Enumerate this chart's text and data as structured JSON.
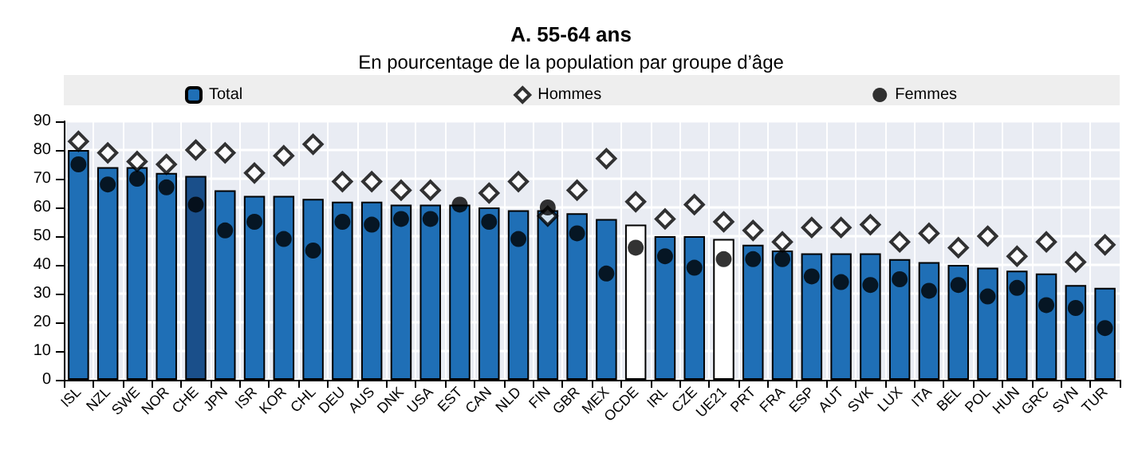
{
  "chart_data": {
    "type": "bar",
    "title": "A. 55-64 ans",
    "subtitle": "En pourcentage de la population par groupe d’âge",
    "categories": [
      "ISL",
      "NZL",
      "SWE",
      "NOR",
      "CHE",
      "JPN",
      "ISR",
      "KOR",
      "CHL",
      "DEU",
      "AUS",
      "DNK",
      "USA",
      "EST",
      "CAN",
      "NLD",
      "FIN",
      "GBR",
      "MEX",
      "OCDE",
      "IRL",
      "CZE",
      "UE21",
      "PRT",
      "FRA",
      "ESP",
      "AUT",
      "SVK",
      "LUX",
      "ITA",
      "BEL",
      "POL",
      "HUN",
      "GRC",
      "SVN",
      "TUR"
    ],
    "series": [
      {
        "name": "Total",
        "color": "#1f6fb6",
        "colors": [
          "#1f6fb6",
          "#1f6fb6",
          "#1f6fb6",
          "#1f6fb6",
          "#1a4f8a",
          "#1f6fb6",
          "#1f6fb6",
          "#1f6fb6",
          "#1f6fb6",
          "#1f6fb6",
          "#1f6fb6",
          "#1f6fb6",
          "#1f6fb6",
          "#1f6fb6",
          "#1f6fb6",
          "#1f6fb6",
          "#1f6fb6",
          "#1f6fb6",
          "#1f6fb6",
          "#ffffff",
          "#1f6fb6",
          "#1f6fb6",
          "#ffffff",
          "#1f6fb6",
          "#1f6fb6",
          "#1f6fb6",
          "#1f6fb6",
          "#1f6fb6",
          "#1f6fb6",
          "#1f6fb6",
          "#1f6fb6",
          "#1f6fb6",
          "#1f6fb6",
          "#1f6fb6",
          "#1f6fb6",
          "#1f6fb6"
        ],
        "values": [
          80,
          74,
          74,
          72,
          71,
          66,
          64,
          64,
          63,
          62,
          62,
          61,
          61,
          61,
          60,
          59,
          59,
          58,
          56,
          54,
          50,
          50,
          49,
          47,
          45,
          44,
          44,
          44,
          42,
          41,
          40,
          39,
          38,
          37,
          33,
          32
        ]
      },
      {
        "name": "Hommes",
        "type": "scatter",
        "marker": "diamond",
        "color": "#ffffff",
        "values": [
          83,
          79,
          76,
          75,
          80,
          79,
          72,
          78,
          82,
          69,
          69,
          66,
          66,
          null,
          65,
          69,
          57,
          66,
          77,
          62,
          56,
          61,
          55,
          52,
          48,
          53,
          53,
          54,
          48,
          51,
          46,
          50,
          43,
          48,
          41,
          47
        ]
      },
      {
        "name": "Femmes",
        "type": "scatter",
        "marker": "circle",
        "color": "#000000",
        "values": [
          75,
          68,
          70,
          67,
          61,
          52,
          55,
          49,
          45,
          55,
          54,
          56,
          56,
          61,
          55,
          49,
          60,
          51,
          37,
          46,
          43,
          39,
          42,
          42,
          42,
          36,
          34,
          33,
          35,
          31,
          33,
          29,
          32,
          26,
          25,
          18
        ]
      }
    ],
    "ylim": [
      0,
      90
    ],
    "yticks": [
      0,
      10,
      20,
      30,
      40,
      50,
      60,
      70,
      80,
      90
    ],
    "grid": true,
    "legend": "top"
  }
}
